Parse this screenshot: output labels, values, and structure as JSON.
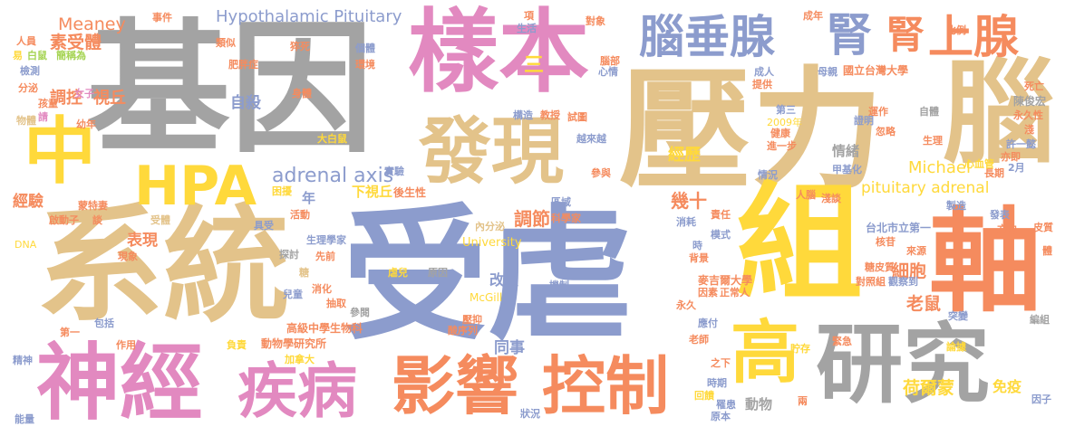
{
  "palette": {
    "tan": "#e3c38a",
    "gray": "#a3a3a3",
    "blue": "#8c9ccd",
    "pink": "#e289c0",
    "yellow": "#ffd93b",
    "orange": "#f58b5e",
    "green": "#a6d454"
  },
  "words": [
    {
      "text": "受虐",
      "color": "blue"
    },
    {
      "text": "基因",
      "color": "gray"
    },
    {
      "text": "壓力",
      "color": "tan"
    },
    {
      "text": "系統",
      "color": "tan"
    },
    {
      "text": "樣本",
      "color": "pink"
    },
    {
      "text": "組",
      "color": "yellow"
    },
    {
      "text": "軸",
      "color": "orange"
    },
    {
      "text": "研究",
      "color": "gray"
    },
    {
      "text": "腦",
      "color": "tan"
    },
    {
      "text": "神經",
      "color": "pink"
    },
    {
      "text": "發現",
      "color": "tan"
    },
    {
      "text": "影響",
      "color": "orange"
    },
    {
      "text": "控制",
      "color": "orange"
    },
    {
      "text": "疾病",
      "color": "pink"
    },
    {
      "text": "腦垂腺",
      "color": "blue"
    },
    {
      "text": "腎",
      "color": "blue"
    },
    {
      "text": "腎",
      "color": "orange"
    },
    {
      "text": "上腺",
      "color": "orange"
    },
    {
      "text": "中",
      "color": "yellow"
    },
    {
      "text": "HPA",
      "color": "yellow"
    },
    {
      "text": "高",
      "color": "yellow"
    },
    {
      "text": "Hypothalamic Pituitary",
      "color": "blue"
    },
    {
      "text": "adrenal axis",
      "color": "blue"
    },
    {
      "text": "pituitary adrenal",
      "color": "yellow"
    },
    {
      "text": "Michael",
      "color": "yellow"
    },
    {
      "text": "Meaney",
      "color": "orange"
    },
    {
      "text": "素受體",
      "color": "orange"
    },
    {
      "text": "調控",
      "color": "orange"
    },
    {
      "text": "視丘",
      "color": "orange"
    },
    {
      "text": "三",
      "color": "yellow"
    },
    {
      "text": "自殺",
      "color": "blue"
    },
    {
      "text": "下視丘",
      "color": "yellow"
    },
    {
      "text": "後生性",
      "color": "orange"
    },
    {
      "text": "調節",
      "color": "orange"
    },
    {
      "text": "幾十",
      "color": "orange"
    },
    {
      "text": "經歷",
      "color": "yellow"
    },
    {
      "text": "細胞",
      "color": "orange"
    },
    {
      "text": "老鼠",
      "color": "orange"
    },
    {
      "text": "荷爾蒙",
      "color": "yellow"
    },
    {
      "text": "表現",
      "color": "orange"
    },
    {
      "text": "經驗",
      "color": "orange"
    },
    {
      "text": "改變",
      "color": "blue"
    },
    {
      "text": "同事",
      "color": "blue"
    },
    {
      "text": "情緒",
      "color": "gray"
    },
    {
      "text": "年",
      "color": "blue"
    },
    {
      "text": "動物",
      "color": "gray"
    },
    {
      "text": "免疫",
      "color": "yellow"
    },
    {
      "text": "McGill",
      "color": "yellow"
    },
    {
      "text": "University",
      "color": "yellow"
    },
    {
      "text": "麥吉爾大學",
      "color": "orange"
    },
    {
      "text": "國立台灣大學",
      "color": "orange"
    },
    {
      "text": "台北市立第一",
      "color": "blue"
    },
    {
      "text": "高級中學生物科",
      "color": "orange"
    },
    {
      "text": "動物學研究所",
      "color": "orange"
    },
    {
      "text": "陳俊宏",
      "color": "gray"
    },
    {
      "text": "事件",
      "color": "orange"
    },
    {
      "text": "類似",
      "color": "orange"
    },
    {
      "text": "人員",
      "color": "orange"
    },
    {
      "text": "易",
      "color": "yellow"
    },
    {
      "text": "白鼠",
      "color": "green"
    },
    {
      "text": "簡稱為",
      "color": "green"
    },
    {
      "text": "檢測",
      "color": "blue"
    },
    {
      "text": "分泌",
      "color": "orange"
    },
    {
      "text": "孩童",
      "color": "orange"
    },
    {
      "text": "女子",
      "color": "pink"
    },
    {
      "text": "請",
      "color": "pink"
    },
    {
      "text": "物體",
      "color": "tan"
    },
    {
      "text": "幼年",
      "color": "orange"
    },
    {
      "text": "蒙特妻",
      "color": "orange"
    },
    {
      "text": "啟動子",
      "color": "orange"
    },
    {
      "text": "談",
      "color": "orange"
    },
    {
      "text": "DNA",
      "color": "yellow"
    },
    {
      "text": "受體",
      "color": "tan"
    },
    {
      "text": "現象",
      "color": "orange"
    },
    {
      "text": "第一",
      "color": "orange"
    },
    {
      "text": "包括",
      "color": "blue"
    },
    {
      "text": "作用",
      "color": "orange"
    },
    {
      "text": "精神",
      "color": "blue"
    },
    {
      "text": "負責",
      "color": "yellow"
    },
    {
      "text": "能量",
      "color": "blue"
    },
    {
      "text": "加拿大",
      "color": "yellow"
    },
    {
      "text": "肥胖症",
      "color": "orange"
    },
    {
      "text": "猝死",
      "color": "orange"
    },
    {
      "text": "個體",
      "color": "blue"
    },
    {
      "text": "環境",
      "color": "orange"
    },
    {
      "text": "身體",
      "color": "orange"
    },
    {
      "text": "大白鼠",
      "color": "yellow"
    },
    {
      "text": "實驗",
      "color": "blue"
    },
    {
      "text": "困擾",
      "color": "yellow"
    },
    {
      "text": "活動",
      "color": "orange"
    },
    {
      "text": "具受",
      "color": "blue"
    },
    {
      "text": "探討",
      "color": "gray"
    },
    {
      "text": "生理學家",
      "color": "blue"
    },
    {
      "text": "先前",
      "color": "orange"
    },
    {
      "text": "糖",
      "color": "tan"
    },
    {
      "text": "消化",
      "color": "orange"
    },
    {
      "text": "兒童",
      "color": "blue"
    },
    {
      "text": "抽取",
      "color": "orange"
    },
    {
      "text": "參閱",
      "color": "gray"
    },
    {
      "text": "原因",
      "color": "gray"
    },
    {
      "text": "虐兒",
      "color": "yellow"
    },
    {
      "text": "壓抑",
      "color": "orange"
    },
    {
      "text": "酸序列",
      "color": "orange"
    },
    {
      "text": "內分泌",
      "color": "tan"
    },
    {
      "text": "科學家",
      "color": "orange"
    },
    {
      "text": "參與",
      "color": "orange"
    },
    {
      "text": "項",
      "color": "orange"
    },
    {
      "text": "生活",
      "color": "blue"
    },
    {
      "text": "對象",
      "color": "orange"
    },
    {
      "text": "腦部",
      "color": "orange"
    },
    {
      "text": "心情",
      "color": "blue"
    },
    {
      "text": "構造",
      "color": "blue"
    },
    {
      "text": "教授",
      "color": "orange"
    },
    {
      "text": "試圖",
      "color": "orange"
    },
    {
      "text": "越來越",
      "color": "blue"
    },
    {
      "text": "區域",
      "color": "blue"
    },
    {
      "text": "機制",
      "color": "blue"
    },
    {
      "text": "成年",
      "color": "orange"
    },
    {
      "text": "比例",
      "color": "orange"
    },
    {
      "text": "母親",
      "color": "blue"
    },
    {
      "text": "成人",
      "color": "blue"
    },
    {
      "text": "提供",
      "color": "orange"
    },
    {
      "text": "2009年",
      "color": "yellow"
    },
    {
      "text": "第三",
      "color": "blue"
    },
    {
      "text": "健康",
      "color": "orange"
    },
    {
      "text": "進一步",
      "color": "orange"
    },
    {
      "text": "運作",
      "color": "orange"
    },
    {
      "text": "證明",
      "color": "blue"
    },
    {
      "text": "忽略",
      "color": "orange"
    },
    {
      "text": "自體",
      "color": "gray"
    },
    {
      "text": "死亡",
      "color": "orange"
    },
    {
      "text": "永久性",
      "color": "orange"
    },
    {
      "text": "淺",
      "color": "orange"
    },
    {
      "text": "生理",
      "color": "orange"
    },
    {
      "text": "許一懿",
      "color": "blue"
    },
    {
      "text": "亦即",
      "color": "orange"
    },
    {
      "text": "2月",
      "color": "blue"
    },
    {
      "text": "長期",
      "color": "orange"
    },
    {
      "text": "心血管",
      "color": "yellow"
    },
    {
      "text": "甲基化",
      "color": "blue"
    },
    {
      "text": "情況",
      "color": "blue"
    },
    {
      "text": "人腦",
      "color": "orange"
    },
    {
      "text": "淺談",
      "color": "orange"
    },
    {
      "text": "製造",
      "color": "blue"
    },
    {
      "text": "發表",
      "color": "blue"
    },
    {
      "text": "皮質",
      "color": "orange"
    },
    {
      "text": "方向",
      "color": "orange"
    },
    {
      "text": "責任",
      "color": "orange"
    },
    {
      "text": "消耗",
      "color": "blue"
    },
    {
      "text": "模式",
      "color": "blue"
    },
    {
      "text": "時",
      "color": "blue"
    },
    {
      "text": "背景",
      "color": "orange"
    },
    {
      "text": "核苷",
      "color": "orange"
    },
    {
      "text": "來源",
      "color": "orange"
    },
    {
      "text": "糖皮質",
      "color": "orange"
    },
    {
      "text": "因素",
      "color": "orange"
    },
    {
      "text": "正常人",
      "color": "orange"
    },
    {
      "text": "對照組",
      "color": "orange"
    },
    {
      "text": "觀察到",
      "color": "blue"
    },
    {
      "text": "永久",
      "color": "orange"
    },
    {
      "text": "突變",
      "color": "blue"
    },
    {
      "text": "應付",
      "color": "blue"
    },
    {
      "text": "緊急",
      "color": "orange"
    },
    {
      "text": "論據",
      "color": "yellow"
    },
    {
      "text": "老師",
      "color": "orange"
    },
    {
      "text": "貯存",
      "color": "yellow"
    },
    {
      "text": "之下",
      "color": "orange"
    },
    {
      "text": "時期",
      "color": "blue"
    },
    {
      "text": "回饋",
      "color": "yellow"
    },
    {
      "text": "罹患",
      "color": "blue"
    },
    {
      "text": "原本",
      "color": "blue"
    },
    {
      "text": "兩",
      "color": "orange"
    },
    {
      "text": "狀況",
      "color": "blue"
    },
    {
      "text": "編組",
      "color": "gray"
    },
    {
      "text": "因子",
      "color": "blue"
    },
    {
      "text": "體",
      "color": "orange"
    }
  ]
}
